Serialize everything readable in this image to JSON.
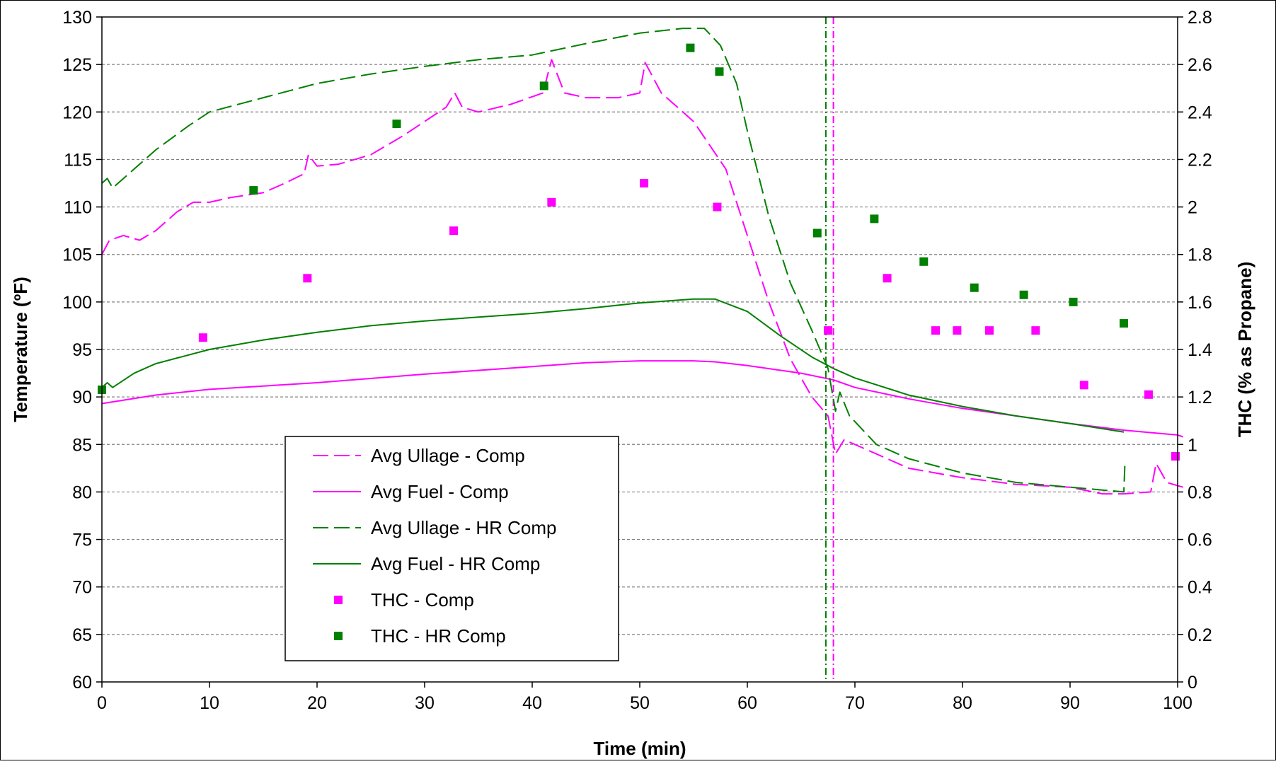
{
  "chart_data": {
    "type": "line",
    "title": "",
    "xlabel": "Time (min)",
    "ylabel": "Temperature (ºF)",
    "y2label": "THC (% as Propane)",
    "xlim": [
      0,
      100
    ],
    "ylim": [
      60,
      130
    ],
    "y2lim": [
      0,
      2.8
    ],
    "x_ticks": [
      "0",
      "10",
      "20",
      "30",
      "40",
      "50",
      "60",
      "70",
      "80",
      "90",
      "100"
    ],
    "y_ticks": [
      "60",
      "65",
      "70",
      "75",
      "80",
      "85",
      "90",
      "95",
      "100",
      "105",
      "110",
      "115",
      "120",
      "125",
      "130"
    ],
    "y2_ticks": [
      "0",
      "0.2",
      "0.4",
      "0.6",
      "0.8",
      "1",
      "1.2",
      "1.4",
      "1.6",
      "1.8",
      "2",
      "2.2",
      "2.4",
      "2.6",
      "2.8"
    ],
    "grid": "horizontal-dashed",
    "legend_position": "lower-left",
    "colors": {
      "comp": "#ff00ff",
      "hr_comp": "#008000"
    },
    "series": [
      {
        "name": "Avg Ullage - Comp",
        "axis": "left",
        "style": "dashed",
        "color": "#ff00ff",
        "points": [
          [
            0,
            105
          ],
          [
            0.7,
            106.5
          ],
          [
            2,
            107
          ],
          [
            3.5,
            106.5
          ],
          [
            5,
            107.5
          ],
          [
            7,
            109.5
          ],
          [
            8.5,
            110.5
          ],
          [
            10,
            110.5
          ],
          [
            12,
            111
          ],
          [
            15,
            111.5
          ],
          [
            17,
            112.5
          ],
          [
            18.8,
            113.5
          ],
          [
            19.2,
            115.5
          ],
          [
            20,
            114.3
          ],
          [
            22,
            114.5
          ],
          [
            25,
            115.5
          ],
          [
            28,
            117.5
          ],
          [
            30,
            119
          ],
          [
            32,
            120.5
          ],
          [
            32.8,
            122
          ],
          [
            33.5,
            120.5
          ],
          [
            35,
            120
          ],
          [
            38,
            120.8
          ],
          [
            41,
            122
          ],
          [
            41.8,
            125.5
          ],
          [
            43,
            122
          ],
          [
            45,
            121.5
          ],
          [
            48,
            121.5
          ],
          [
            50,
            122
          ],
          [
            50.5,
            125.2
          ],
          [
            52,
            122
          ],
          [
            55,
            119
          ],
          [
            58,
            114
          ],
          [
            60,
            107
          ],
          [
            62,
            100
          ],
          [
            64,
            94
          ],
          [
            66,
            90
          ],
          [
            67.5,
            88
          ],
          [
            68.2,
            84
          ],
          [
            69,
            85.5
          ],
          [
            72,
            84
          ],
          [
            75,
            82.5
          ],
          [
            80,
            81.5
          ],
          [
            85,
            80.8
          ],
          [
            90,
            80.5
          ],
          [
            93,
            79.8
          ],
          [
            95,
            79.8
          ],
          [
            97.5,
            80
          ],
          [
            98,
            83
          ],
          [
            99,
            81
          ],
          [
            100.5,
            80.5
          ]
        ]
      },
      {
        "name": "Avg Fuel - Comp",
        "axis": "left",
        "style": "solid",
        "color": "#ff00ff",
        "points": [
          [
            0,
            89.3
          ],
          [
            5,
            90.2
          ],
          [
            10,
            90.8
          ],
          [
            20,
            91.5
          ],
          [
            30,
            92.4
          ],
          [
            40,
            93.2
          ],
          [
            45,
            93.6
          ],
          [
            50,
            93.8
          ],
          [
            55,
            93.8
          ],
          [
            57,
            93.7
          ],
          [
            60,
            93.3
          ],
          [
            65,
            92.5
          ],
          [
            68,
            91.8
          ],
          [
            70,
            91
          ],
          [
            75,
            89.8
          ],
          [
            80,
            88.8
          ],
          [
            85,
            88
          ],
          [
            90,
            87.2
          ],
          [
            95,
            86.5
          ],
          [
            100,
            86
          ],
          [
            100.5,
            85.8
          ]
        ]
      },
      {
        "name": "Avg Ullage - HR Comp",
        "axis": "left",
        "style": "dashed",
        "color": "#008000",
        "points": [
          [
            0,
            112.5
          ],
          [
            0.5,
            113
          ],
          [
            1,
            112
          ],
          [
            3,
            114
          ],
          [
            5,
            116
          ],
          [
            8,
            118.5
          ],
          [
            10,
            120
          ],
          [
            15,
            121.5
          ],
          [
            20,
            123
          ],
          [
            25,
            124
          ],
          [
            30,
            124.8
          ],
          [
            35,
            125.5
          ],
          [
            40,
            126
          ],
          [
            45,
            127.2
          ],
          [
            50,
            128.3
          ],
          [
            54,
            128.8
          ],
          [
            56,
            128.8
          ],
          [
            57.5,
            127
          ],
          [
            59,
            123
          ],
          [
            60,
            118
          ],
          [
            62,
            109
          ],
          [
            64,
            102
          ],
          [
            66,
            97
          ],
          [
            67.5,
            93
          ],
          [
            68.2,
            88.5
          ],
          [
            68.6,
            90.5
          ],
          [
            69.5,
            88
          ],
          [
            72,
            85
          ],
          [
            75,
            83.5
          ],
          [
            80,
            82
          ],
          [
            85,
            81
          ],
          [
            90,
            80.5
          ],
          [
            93,
            80.2
          ],
          [
            95,
            80
          ],
          [
            95.1,
            83
          ]
        ]
      },
      {
        "name": "Avg Fuel - HR Comp",
        "axis": "left",
        "style": "solid",
        "color": "#008000",
        "points": [
          [
            0,
            91
          ],
          [
            0.5,
            91.5
          ],
          [
            1,
            91
          ],
          [
            3,
            92.5
          ],
          [
            5,
            93.5
          ],
          [
            10,
            95
          ],
          [
            15,
            96
          ],
          [
            20,
            96.8
          ],
          [
            25,
            97.5
          ],
          [
            30,
            98
          ],
          [
            35,
            98.4
          ],
          [
            40,
            98.8
          ],
          [
            45,
            99.3
          ],
          [
            50,
            99.9
          ],
          [
            55,
            100.3
          ],
          [
            57,
            100.3
          ],
          [
            60,
            99
          ],
          [
            63,
            96.5
          ],
          [
            66,
            94.2
          ],
          [
            68,
            93
          ],
          [
            70,
            92
          ],
          [
            75,
            90.2
          ],
          [
            80,
            89
          ],
          [
            85,
            88
          ],
          [
            90,
            87.2
          ],
          [
            95,
            86.3
          ]
        ]
      },
      {
        "name": "THC - Comp",
        "axis": "right",
        "style": "markers",
        "color": "#ff00ff",
        "points": [
          [
            9.4,
            1.45
          ],
          [
            19.1,
            1.7
          ],
          [
            32.7,
            1.9
          ],
          [
            41.8,
            2.02
          ],
          [
            50.4,
            2.1
          ],
          [
            57.2,
            2
          ],
          [
            67.5,
            1.48
          ],
          [
            73,
            1.7
          ],
          [
            77.5,
            1.48
          ],
          [
            79.5,
            1.48
          ],
          [
            82.5,
            1.48
          ],
          [
            86.8,
            1.48
          ],
          [
            91.3,
            1.25
          ],
          [
            97.3,
            1.21
          ],
          [
            99.8,
            0.95
          ]
        ]
      },
      {
        "name": "THC - HR Comp",
        "axis": "right",
        "style": "markers",
        "color": "#008000",
        "points": [
          [
            0,
            1.23
          ],
          [
            14.1,
            2.07
          ],
          [
            27.4,
            2.35
          ],
          [
            41.1,
            2.51
          ],
          [
            54.7,
            2.67
          ],
          [
            57.4,
            2.57
          ],
          [
            66.5,
            1.89
          ],
          [
            71.8,
            1.95
          ],
          [
            76.4,
            1.77
          ],
          [
            81.1,
            1.66
          ],
          [
            85.7,
            1.63
          ],
          [
            90.3,
            1.6
          ],
          [
            95,
            1.51
          ]
        ]
      }
    ],
    "vertical_lines": [
      {
        "x": 67.3,
        "color": "#008000",
        "style": "dash-dot"
      },
      {
        "x": 68.0,
        "color": "#ff00ff",
        "style": "dash-dot"
      }
    ]
  }
}
